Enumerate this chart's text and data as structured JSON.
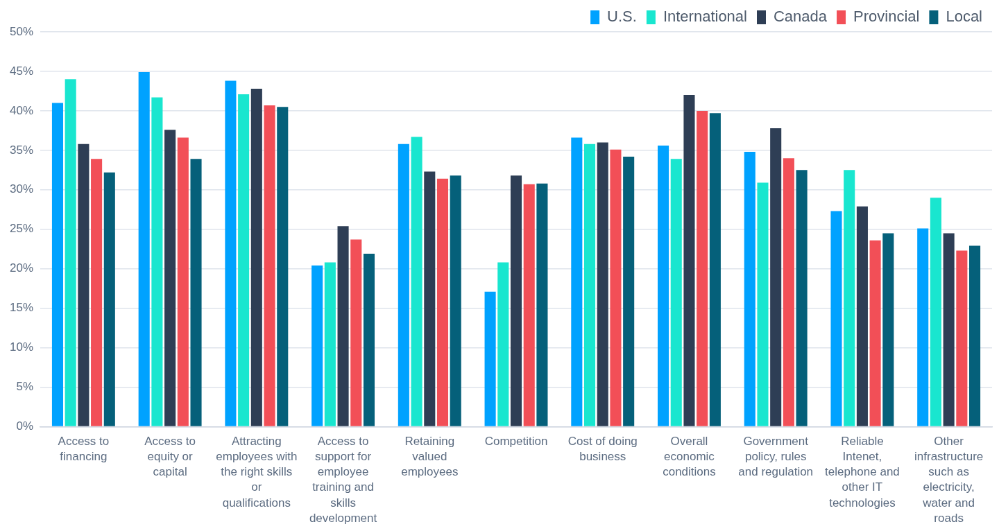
{
  "chart_data": {
    "type": "bar",
    "categories": [
      "Access to financing",
      "Access to equity or capital",
      "Attracting employees with the right skills or qualifications",
      "Access to support for employee training and skills development",
      "Retaining valued employees",
      "Competition",
      "Cost of doing business",
      "Overall economic conditions",
      "Government policy, rules and regulation",
      "Reliable Intenet, telephone and other IT technologies",
      "Other infrastructure such as electricity, water and roads"
    ],
    "series": [
      {
        "name": "U.S.",
        "color": "#00a2ff",
        "values": [
          41.0,
          44.9,
          43.8,
          20.4,
          35.8,
          17.1,
          36.6,
          35.6,
          34.8,
          27.3,
          25.1
        ]
      },
      {
        "name": "International",
        "color": "#19e6cf",
        "values": [
          44.0,
          41.7,
          42.1,
          20.8,
          36.7,
          20.8,
          35.8,
          33.9,
          30.9,
          32.5,
          29.0
        ]
      },
      {
        "name": "Canada",
        "color": "#2e3e55",
        "values": [
          35.8,
          37.6,
          42.8,
          25.4,
          32.3,
          31.8,
          36.0,
          42.0,
          37.8,
          27.9,
          24.5
        ]
      },
      {
        "name": "Provincial",
        "color": "#f24f57",
        "values": [
          33.9,
          36.6,
          40.7,
          23.7,
          31.4,
          30.7,
          35.1,
          40.0,
          34.0,
          23.6,
          22.3
        ]
      },
      {
        "name": "Local",
        "color": "#05607a",
        "values": [
          32.2,
          33.9,
          40.5,
          21.9,
          31.8,
          30.8,
          34.2,
          39.7,
          32.5,
          24.5,
          22.9
        ]
      }
    ],
    "ylim": [
      0,
      50
    ],
    "yticks": [
      {
        "value": 0,
        "label": "0%"
      },
      {
        "value": 5,
        "label": "5%"
      },
      {
        "value": 10,
        "label": "10%"
      },
      {
        "value": 15,
        "label": "15%"
      },
      {
        "value": 20,
        "label": "20%"
      },
      {
        "value": 25,
        "label": "25%"
      },
      {
        "value": 30,
        "label": "30%"
      },
      {
        "value": 35,
        "label": "35%"
      },
      {
        "value": 40,
        "label": "40%"
      },
      {
        "value": 45,
        "label": "45%"
      },
      {
        "value": 50,
        "label": "50%"
      }
    ],
    "grid": "y",
    "legend": "top right"
  }
}
